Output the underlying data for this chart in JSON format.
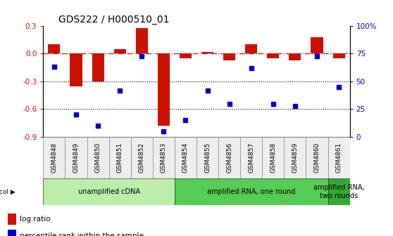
{
  "title": "GDS222 / H000510_01",
  "samples": [
    "GSM4848",
    "GSM4849",
    "GSM4850",
    "GSM4851",
    "GSM4852",
    "GSM4853",
    "GSM4854",
    "GSM4855",
    "GSM4856",
    "GSM4857",
    "GSM4858",
    "GSM4859",
    "GSM4860",
    "GSM4861"
  ],
  "log_ratio": [
    0.1,
    -0.35,
    -0.3,
    0.05,
    0.28,
    -0.78,
    -0.05,
    0.02,
    -0.07,
    0.1,
    -0.05,
    -0.07,
    0.18,
    -0.05
  ],
  "percentile": [
    63,
    20,
    10,
    42,
    73,
    5,
    15,
    42,
    30,
    62,
    30,
    28,
    73,
    45
  ],
  "ylim_left": [
    -0.9,
    0.3
  ],
  "ylim_right": [
    0,
    100
  ],
  "yticks_left": [
    -0.9,
    -0.6,
    -0.3,
    0.0,
    0.3
  ],
  "yticks_right": [
    0,
    25,
    50,
    75,
    100
  ],
  "ytick_labels_right": [
    "0",
    "25",
    "50",
    "75",
    "100%"
  ],
  "bar_color": "#cc1100",
  "dot_color": "#0000cc",
  "dashed_line_color": "#cc1100",
  "dotted_line_color": "#000000",
  "bg_color": "#ffffff",
  "protocol_groups": [
    {
      "label": "unamplified cDNA",
      "start": 0,
      "end": 5,
      "color": "#bbeeaa"
    },
    {
      "label": "amplified RNA, one round",
      "start": 6,
      "end": 12,
      "color": "#55cc55"
    },
    {
      "label": "amplified RNA,\ntwo rounds",
      "start": 13,
      "end": 13,
      "color": "#33aa33"
    }
  ],
  "title_fontsize": 10,
  "tick_fontsize": 7.5,
  "sample_fontsize": 6.5,
  "legend_fontsize": 7.5,
  "proto_fontsize": 7,
  "bar_width": 0.55,
  "dot_size": 22
}
